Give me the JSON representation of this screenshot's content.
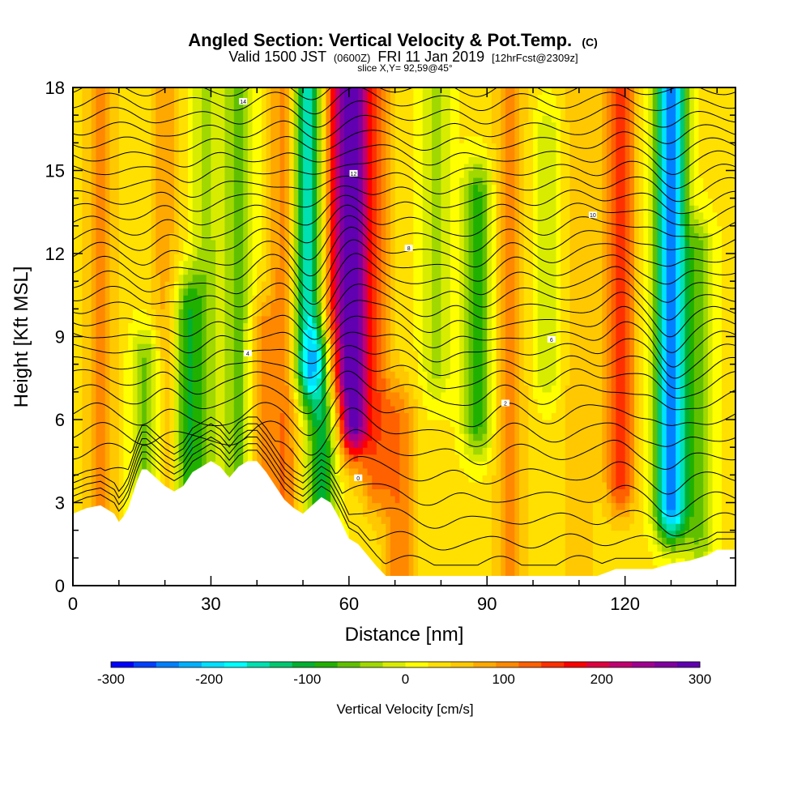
{
  "chart_data": {
    "type": "heatmap",
    "title": "Angled Section: Vertical Velocity & Pot.Temp.",
    "title_unit": "(C)",
    "subtitle_parts": [
      "Valid 1500 JST",
      "(0600Z)",
      "FRI 11 Jan 2019",
      "[12hrFcst@2309z]"
    ],
    "slice_text": "slice X,Y= 92,59@45°",
    "xlabel": "Distance [nm]",
    "ylabel": "Height [Kft MSL]",
    "xlim": [
      0,
      144
    ],
    "ylim": [
      0,
      18
    ],
    "x_ticks": [
      0,
      30,
      60,
      90,
      120
    ],
    "y_ticks": [
      0,
      3,
      6,
      9,
      12,
      15,
      18
    ],
    "colorbar": {
      "label": "Vertical Velocity [cm/s]",
      "range": [
        -300,
        300
      ],
      "ticks": [
        -300,
        -200,
        -100,
        0,
        100,
        200,
        300
      ],
      "colors": [
        "#0000ff",
        "#0040ff",
        "#0080ff",
        "#00b0ff",
        "#00e0ff",
        "#00ffff",
        "#00e0b0",
        "#00c870",
        "#00b030",
        "#20b000",
        "#60c000",
        "#a0d800",
        "#d8ec00",
        "#ffff00",
        "#ffe000",
        "#ffc800",
        "#ffa800",
        "#ff8800",
        "#ff6000",
        "#ff3000",
        "#ff0000",
        "#e00040",
        "#c00070",
        "#a00090",
        "#8000a0",
        "#6000b0"
      ]
    },
    "velocity_features": [
      {
        "x": 6,
        "z_min": 0,
        "z_max": 18,
        "w": 70
      },
      {
        "x": 16,
        "z_min": 2,
        "z_max": 8,
        "w": -90
      },
      {
        "x": 20,
        "z_min": 0,
        "z_max": 18,
        "w": 50
      },
      {
        "x": 25,
        "z_min": 2,
        "z_max": 10,
        "w": -110
      },
      {
        "x": 29,
        "z_min": 5,
        "z_max": 18,
        "w": -60
      },
      {
        "x": 36,
        "z_min": 4,
        "z_max": 18,
        "w": -90
      },
      {
        "x": 41,
        "z_min": 3,
        "z_max": 9,
        "w": 70
      },
      {
        "x": 46,
        "z_min": 2,
        "z_max": 18,
        "w": 80
      },
      {
        "x": 51,
        "z_min": 8,
        "z_max": 18,
        "w": -190
      },
      {
        "x": 54,
        "z_min": 2,
        "z_max": 8,
        "w": -140
      },
      {
        "x": 57,
        "z_min": 8,
        "z_max": 18,
        "w": 120
      },
      {
        "x": 61,
        "z_min": 6,
        "z_max": 18,
        "w": 260
      },
      {
        "x": 66,
        "z_min": 4,
        "z_max": 18,
        "w": 90
      },
      {
        "x": 71,
        "z_min": 0,
        "z_max": 6,
        "w": 80
      },
      {
        "x": 79,
        "z_min": 8,
        "z_max": 18,
        "w": -60
      },
      {
        "x": 88,
        "z_min": 6,
        "z_max": 14,
        "w": -110
      },
      {
        "x": 95,
        "z_min": 0,
        "z_max": 18,
        "w": 70
      },
      {
        "x": 103,
        "z_min": 8,
        "z_max": 16,
        "w": -50
      },
      {
        "x": 110,
        "z_min": 0,
        "z_max": 18,
        "w": 40
      },
      {
        "x": 119,
        "z_min": 4,
        "z_max": 18,
        "w": 130
      },
      {
        "x": 130,
        "z_min": 3,
        "z_max": 18,
        "w": -280
      },
      {
        "x": 136,
        "z_min": 2,
        "z_max": 12,
        "w": -80
      }
    ],
    "terrain": {
      "x": [
        0,
        3,
        6,
        9,
        10,
        11,
        12,
        13,
        14,
        15,
        16,
        18,
        20,
        22,
        24,
        26,
        28,
        30,
        32,
        34,
        36,
        38,
        40,
        42,
        44,
        46,
        48,
        50,
        52,
        54,
        56,
        58,
        60,
        62,
        64,
        66,
        68,
        72,
        80,
        90,
        100,
        110,
        114,
        118,
        122,
        126,
        130,
        134,
        138,
        140,
        144
      ],
      "z": [
        2.6,
        2.8,
        2.9,
        2.6,
        2.3,
        2.5,
        2.8,
        3.3,
        3.8,
        4.2,
        4.2,
        3.9,
        3.6,
        3.4,
        3.6,
        4.1,
        4.3,
        4.5,
        4.3,
        3.9,
        4.3,
        4.5,
        4.5,
        4.1,
        3.6,
        3.1,
        2.8,
        2.6,
        2.9,
        3.2,
        3.0,
        2.4,
        1.7,
        1.5,
        1.1,
        0.7,
        0.35,
        0.35,
        0.35,
        0.35,
        0.35,
        0.35,
        0.35,
        0.6,
        0.6,
        0.6,
        0.8,
        0.9,
        1.1,
        1.3,
        1.3
      ]
    },
    "isentropes_base": [
      0.8,
      1.6,
      2.4,
      3.2,
      4.0,
      4.8,
      5.5,
      6.2,
      6.9,
      7.5,
      8.0,
      8.5,
      9.0,
      9.5,
      10.0,
      10.5,
      11.0,
      11.5,
      12.0,
      12.5,
      13.0,
      13.5,
      14.0,
      14.5,
      15.0,
      15.5,
      16.0,
      16.5,
      17.0,
      17.5,
      18.0
    ],
    "isentrope_labels": [
      {
        "x": 62,
        "z": 3.9,
        "text": "0"
      },
      {
        "x": 94,
        "z": 6.6,
        "text": "2"
      },
      {
        "x": 38,
        "z": 8.4,
        "text": "4"
      },
      {
        "x": 104,
        "z": 8.9,
        "text": "6"
      },
      {
        "x": 73,
        "z": 12.2,
        "text": "8"
      },
      {
        "x": 113,
        "z": 13.4,
        "text": "10"
      },
      {
        "x": 61,
        "z": 14.9,
        "text": "12"
      },
      {
        "x": 37,
        "z": 17.5,
        "text": "14"
      }
    ]
  }
}
